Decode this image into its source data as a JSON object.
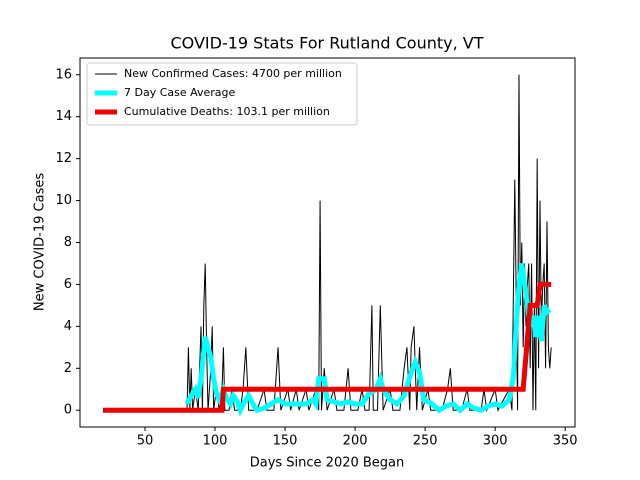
{
  "chart_data": {
    "type": "line",
    "title": "COVID-19 Stats For Rutland County, VT",
    "x_label": "Days Since 2020 Began",
    "y_label": "New COVID-19 Cases",
    "xlim": [
      3.6,
      357
    ],
    "ylim": [
      -0.8,
      16.8
    ],
    "xticks": [
      50,
      100,
      150,
      200,
      250,
      300,
      350
    ],
    "yticks": [
      0,
      2,
      4,
      6,
      8,
      10,
      12,
      14,
      16
    ],
    "legend": "upper left",
    "series": [
      {
        "name": "New Confirmed Cases: 4700 per million",
        "color": "#000000",
        "x": [
          80,
          81,
          82,
          83,
          84,
          86,
          88,
          90,
          91,
          92,
          93,
          94,
          95,
          97,
          98,
          99,
          101,
          103,
          105,
          106,
          107,
          110,
          112,
          114,
          118,
          120,
          122,
          124,
          130,
          135,
          137,
          142,
          145,
          147,
          152,
          154,
          158,
          160,
          165,
          167,
          172,
          174,
          175,
          176,
          178,
          180,
          185,
          187,
          192,
          195,
          197,
          202,
          205,
          207,
          210,
          212,
          213,
          216,
          218,
          220,
          225,
          227,
          232,
          235,
          237,
          239,
          240,
          242,
          244,
          246,
          248,
          252,
          254,
          262,
          266,
          268,
          270,
          276,
          280,
          282,
          290,
          292,
          294,
          300,
          302,
          310,
          312,
          314,
          316,
          317,
          318,
          319,
          320,
          321,
          322,
          323,
          324,
          325,
          326,
          327,
          328,
          329,
          330,
          331,
          332,
          333,
          334,
          335,
          336,
          337,
          338,
          339,
          340
        ],
        "values": [
          0,
          3,
          0,
          2,
          0,
          1,
          0,
          4,
          0,
          5,
          7,
          3,
          0,
          2,
          4,
          0,
          1,
          0,
          1,
          3,
          0,
          0,
          1,
          0,
          0,
          1,
          3,
          0,
          0,
          1,
          0,
          0,
          3,
          0,
          1,
          0,
          1,
          0,
          1,
          0,
          1,
          0,
          10,
          0,
          2,
          0,
          1,
          0,
          0,
          2,
          0,
          0,
          1,
          0,
          0,
          5,
          0,
          0,
          5,
          0,
          1,
          0,
          0,
          2,
          3,
          0,
          3,
          4,
          0,
          3,
          0,
          1,
          0,
          0,
          1,
          2,
          0,
          0,
          1,
          0,
          0,
          1,
          0,
          1,
          0,
          1,
          0,
          11,
          0,
          16,
          5,
          8,
          3,
          7,
          4,
          6,
          7,
          2,
          7,
          0,
          5,
          0,
          12,
          2,
          10,
          4,
          6,
          7,
          2,
          9,
          3,
          2,
          3
        ]
      },
      {
        "name": "7 Day Case Average",
        "color": "#00ffff",
        "x": [
          80,
          83,
          86,
          88,
          90,
          93,
          95,
          97,
          99,
          101,
          103,
          106,
          108,
          111,
          113,
          116,
          118,
          121,
          124,
          127,
          130,
          135,
          140,
          145,
          150,
          155,
          160,
          165,
          170,
          172,
          174,
          178,
          180,
          185,
          190,
          195,
          200,
          205,
          210,
          215,
          218,
          220,
          225,
          230,
          235,
          240,
          243,
          246,
          249,
          255,
          260,
          265,
          270,
          275,
          280,
          285,
          290,
          295,
          300,
          305,
          310,
          313,
          315,
          317,
          319,
          321,
          323,
          325,
          327,
          329,
          331,
          333,
          335,
          337,
          339
        ],
        "values": [
          0.3,
          0.7,
          1.0,
          0.6,
          1.5,
          3.5,
          3.0,
          2.5,
          1.5,
          0.8,
          0.5,
          1.0,
          0.6,
          0.3,
          0.7,
          0.4,
          0,
          0.4,
          0.7,
          0.3,
          0,
          0.1,
          0.3,
          0.5,
          0.3,
          0.3,
          0.3,
          0.3,
          0.5,
          0.3,
          1.5,
          1.5,
          0.5,
          0.4,
          0.3,
          0.4,
          0.3,
          0.3,
          0.8,
          1.0,
          1.5,
          1.0,
          0.5,
          0.3,
          0.7,
          1.8,
          2.3,
          1.8,
          0.5,
          0.3,
          0,
          0.2,
          0.3,
          0,
          0.3,
          0.1,
          0,
          0.2,
          0.3,
          0.2,
          0.5,
          1.6,
          4,
          6,
          7,
          6,
          5,
          4,
          4.5,
          3.5,
          4.5,
          3.3,
          5,
          4.7,
          4.8
        ]
      },
      {
        "name": "Cumulative Deaths: 103.1 per million",
        "color": "#ee0000",
        "x": [
          20,
          105,
          106,
          320,
          325,
          330,
          332,
          340
        ],
        "values": [
          0,
          0,
          1,
          1,
          5,
          5,
          6,
          6
        ]
      }
    ]
  }
}
